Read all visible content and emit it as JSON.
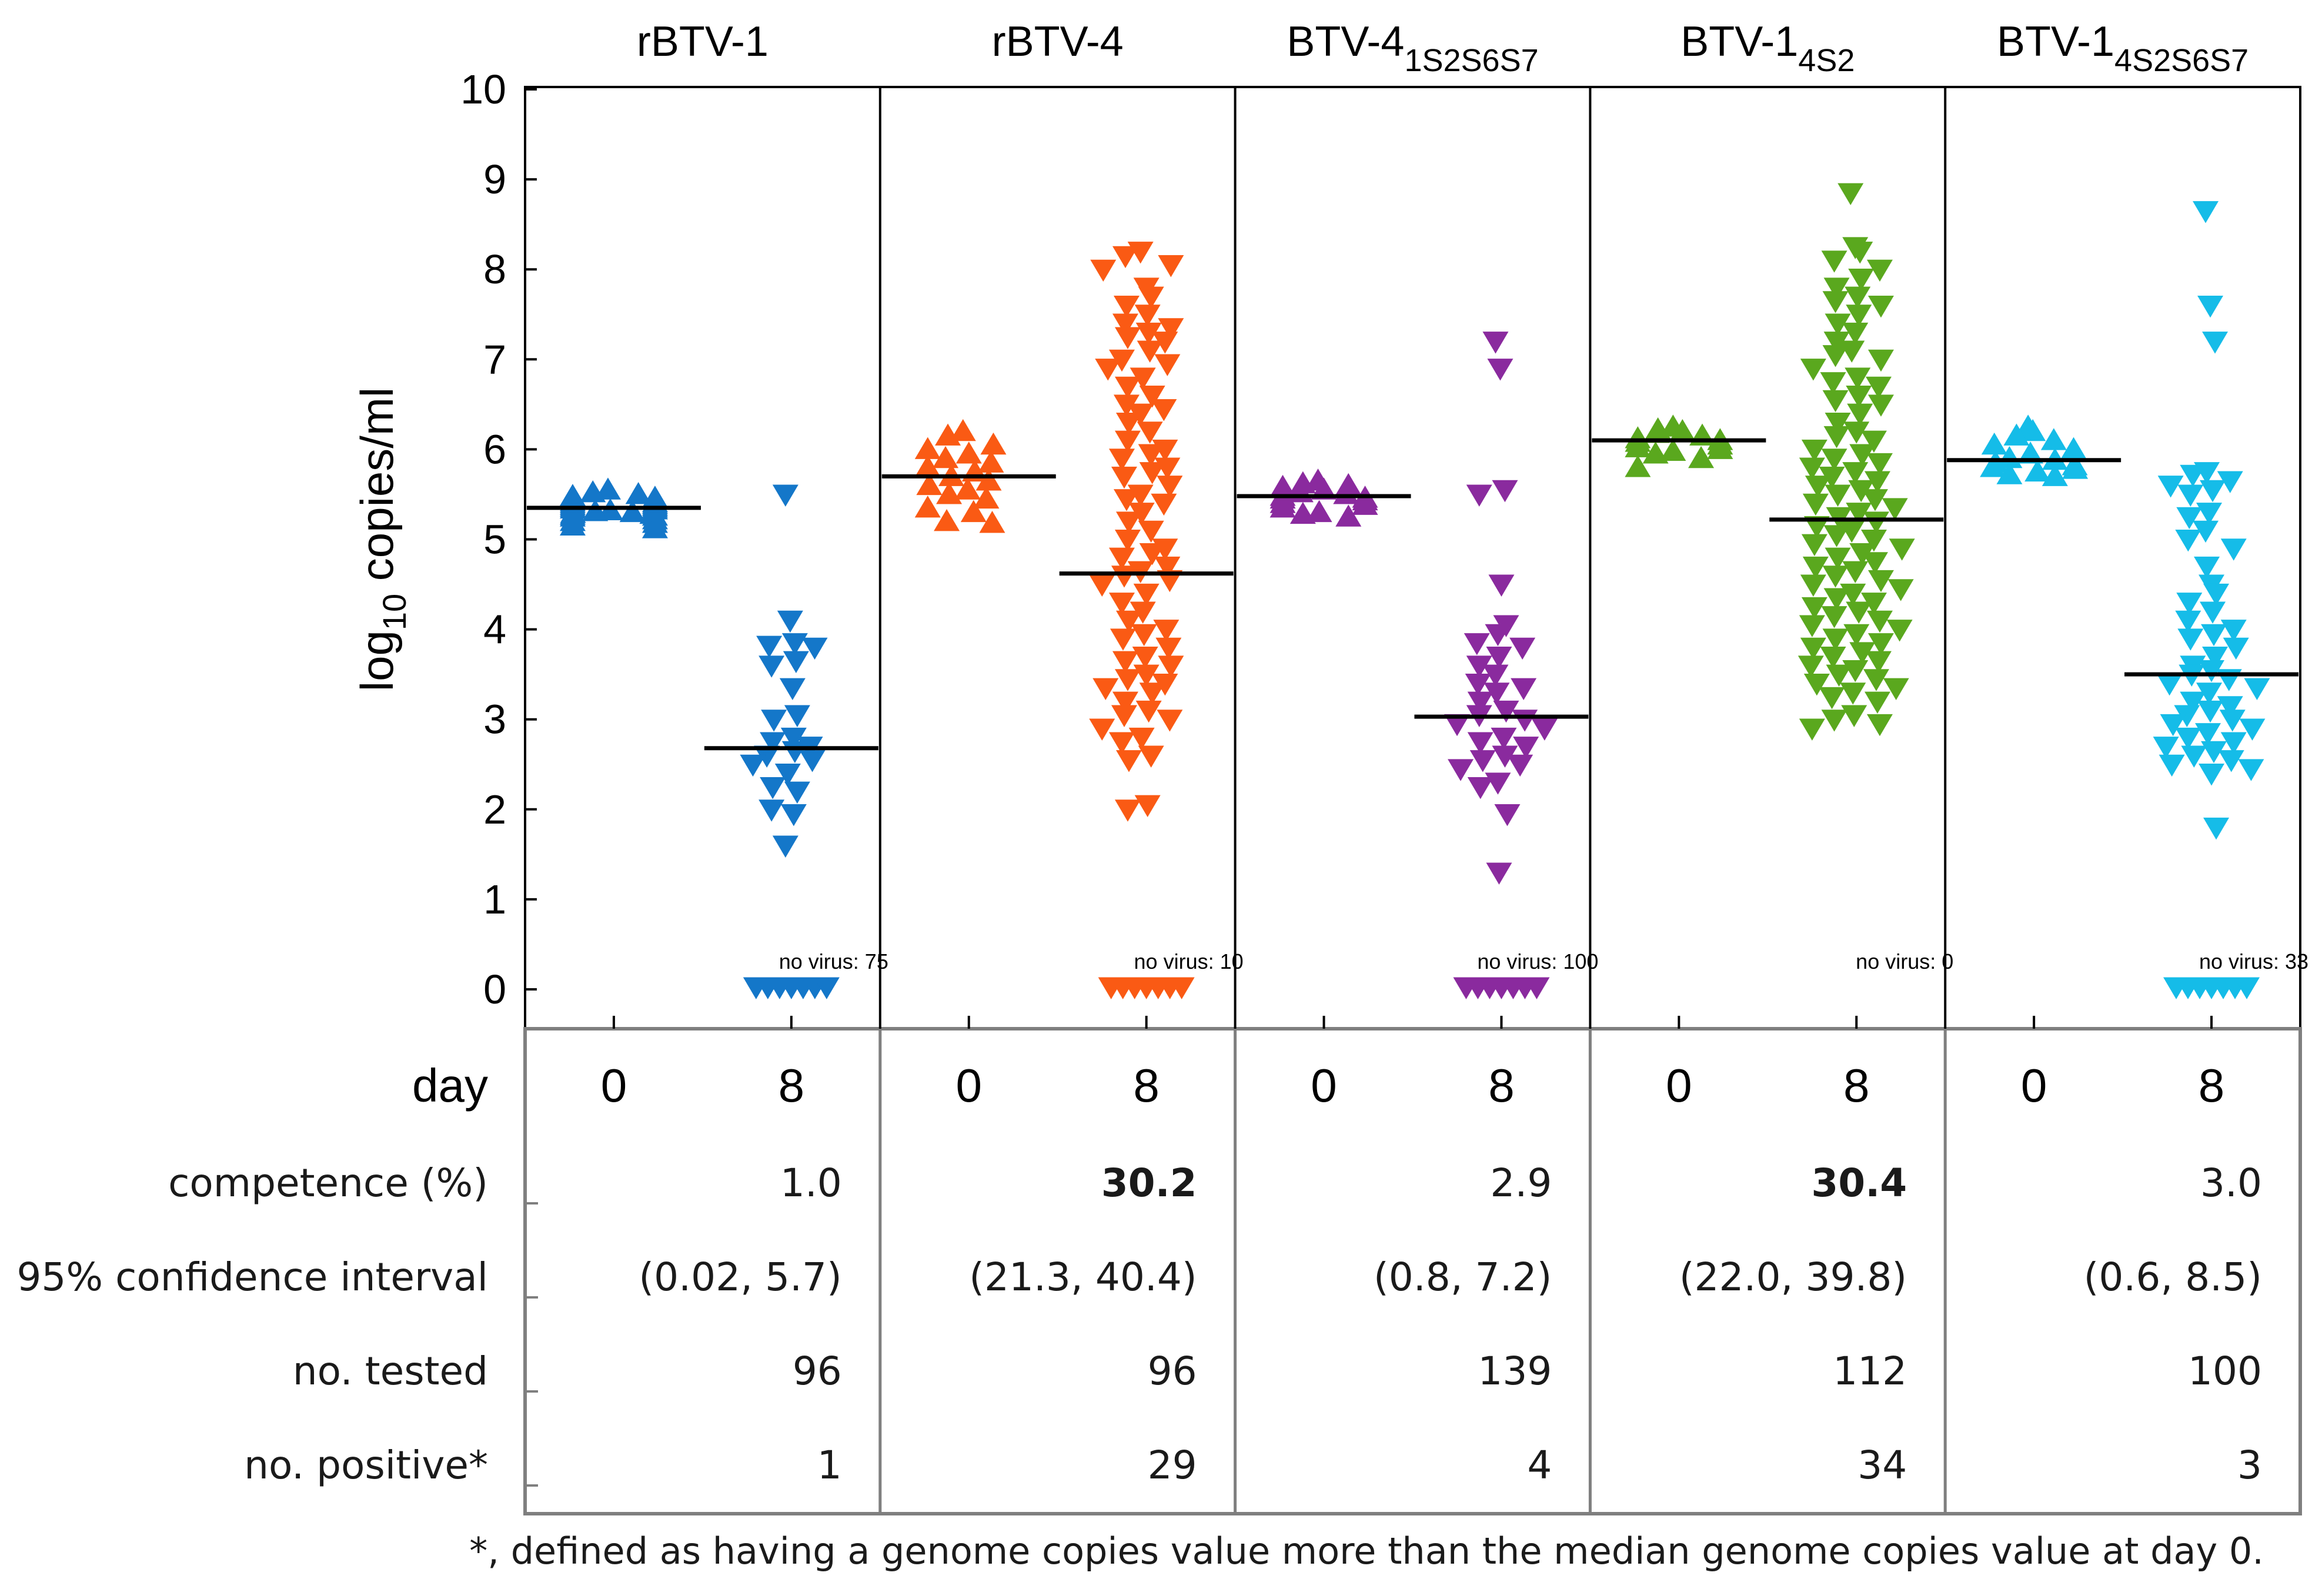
{
  "chart_data": {
    "type": "scatter",
    "ylabel_base": "log",
    "ylabel_sub": "10",
    "ylabel_rest": " copies/ml",
    "ylim": [
      0,
      10
    ],
    "yticks": [
      0,
      1,
      2,
      3,
      4,
      5,
      6,
      7,
      8,
      9,
      10
    ],
    "day_label": "day",
    "days": [
      "0",
      "8"
    ],
    "no_virus_prefix": "no virus: ",
    "panels": [
      {
        "title_main": "rBTV-1",
        "title_sub": "",
        "color": "#1477c9",
        "day0": {
          "median": 5.35,
          "values": [
            5.55,
            5.52,
            5.5,
            5.48,
            5.46,
            5.45,
            5.44,
            5.42,
            5.41,
            5.4,
            5.39,
            5.38,
            5.37,
            5.36,
            5.35,
            5.34,
            5.33,
            5.32,
            5.31,
            5.3,
            5.29,
            5.28,
            5.27,
            5.26,
            5.25,
            5.22,
            5.2,
            5.18,
            5.15,
            5.12
          ]
        },
        "day8": {
          "median": 2.68,
          "no_virus": 75,
          "values": [
            5.5,
            4.1,
            3.85,
            3.82,
            3.8,
            3.65,
            3.6,
            3.35,
            3.05,
            3.0,
            2.8,
            2.75,
            2.7,
            2.65,
            2.6,
            2.55,
            2.5,
            2.4,
            2.25,
            2.2,
            2.0,
            1.95,
            1.6
          ]
        }
      },
      {
        "title_main": "rBTV-4",
        "title_sub": "",
        "color": "#fa5a14",
        "day0": {
          "median": 5.7,
          "values": [
            6.2,
            6.15,
            6.05,
            6.0,
            5.95,
            5.9,
            5.85,
            5.8,
            5.75,
            5.7,
            5.65,
            5.6,
            5.55,
            5.5,
            5.45,
            5.35,
            5.3,
            5.2,
            5.18
          ]
        },
        "day8": {
          "median": 4.62,
          "no_virus": 10,
          "values": [
            8.2,
            8.15,
            8.05,
            8.0,
            7.8,
            7.7,
            7.6,
            7.5,
            7.4,
            7.35,
            7.3,
            7.25,
            7.2,
            7.1,
            7.0,
            6.95,
            6.9,
            6.8,
            6.7,
            6.6,
            6.5,
            6.45,
            6.4,
            6.3,
            6.2,
            6.1,
            6.0,
            5.95,
            5.9,
            5.8,
            5.75,
            5.7,
            5.6,
            5.5,
            5.45,
            5.4,
            5.3,
            5.2,
            5.1,
            5.0,
            4.9,
            4.85,
            4.8,
            4.7,
            4.65,
            4.6,
            4.55,
            4.5,
            4.4,
            4.3,
            4.2,
            4.1,
            4.0,
            3.95,
            3.9,
            3.8,
            3.7,
            3.65,
            3.6,
            3.5,
            3.45,
            3.4,
            3.35,
            3.3,
            3.2,
            3.1,
            3.05,
            3.0,
            2.9,
            2.8,
            2.75,
            2.6,
            2.55,
            2.05,
            2.0
          ]
        }
      },
      {
        "title_main": "BTV-4",
        "title_sub": "1S2S6S7",
        "color": "#8a2a9e",
        "day0": {
          "median": 5.48,
          "values": [
            5.65,
            5.62,
            5.6,
            5.58,
            5.55,
            5.52,
            5.5,
            5.48,
            5.46,
            5.45,
            5.43,
            5.4,
            5.38,
            5.35,
            5.3,
            5.28,
            5.25
          ]
        },
        "day8": {
          "median": 3.03,
          "no_virus": 100,
          "values": [
            7.2,
            6.9,
            5.55,
            5.5,
            4.5,
            4.05,
            3.95,
            3.85,
            3.8,
            3.7,
            3.6,
            3.5,
            3.4,
            3.35,
            3.3,
            3.2,
            3.1,
            3.05,
            3.0,
            2.95,
            2.9,
            2.8,
            2.75,
            2.7,
            2.6,
            2.55,
            2.5,
            2.45,
            2.3,
            2.25,
            1.95,
            1.3
          ]
        }
      },
      {
        "title_main": "BTV-1",
        "title_sub": "4S2",
        "color": "#5aa81e",
        "day0": {
          "median": 6.1,
          "values": [
            6.25,
            6.22,
            6.2,
            6.18,
            6.15,
            6.12,
            6.1,
            6.08,
            6.05,
            6.02,
            6.0,
            5.98,
            5.95,
            5.9,
            5.8
          ]
        },
        "day8": {
          "median": 5.22,
          "no_virus": 0,
          "values": [
            8.85,
            8.25,
            8.2,
            8.1,
            8.0,
            7.9,
            7.8,
            7.7,
            7.65,
            7.6,
            7.5,
            7.4,
            7.3,
            7.2,
            7.1,
            7.05,
            7.0,
            6.9,
            6.8,
            6.75,
            6.7,
            6.6,
            6.55,
            6.5,
            6.4,
            6.3,
            6.2,
            6.15,
            6.1,
            6.0,
            5.95,
            5.9,
            5.85,
            5.8,
            5.75,
            5.7,
            5.65,
            5.6,
            5.55,
            5.5,
            5.45,
            5.4,
            5.35,
            5.3,
            5.25,
            5.2,
            5.15,
            5.1,
            5.05,
            5.0,
            4.95,
            4.9,
            4.85,
            4.8,
            4.75,
            4.7,
            4.65,
            4.6,
            4.55,
            4.5,
            4.45,
            4.4,
            4.35,
            4.3,
            4.25,
            4.2,
            4.15,
            4.1,
            4.05,
            4.0,
            3.95,
            3.9,
            3.85,
            3.8,
            3.75,
            3.7,
            3.65,
            3.6,
            3.55,
            3.5,
            3.45,
            3.4,
            3.35,
            3.3,
            3.25,
            3.2,
            3.05,
            3.0,
            2.95,
            2.9
          ]
        }
      },
      {
        "title_main": "BTV-1",
        "title_sub": "4S2S6S7",
        "color": "#15bce8",
        "day0": {
          "median": 5.88,
          "values": [
            6.25,
            6.2,
            6.15,
            6.1,
            6.05,
            6.0,
            5.95,
            5.9,
            5.88,
            5.85,
            5.82,
            5.8,
            5.78,
            5.75,
            5.72,
            5.7
          ]
        },
        "day8": {
          "median": 3.5,
          "no_virus": 33,
          "values": [
            8.65,
            7.6,
            7.2,
            5.75,
            5.72,
            5.65,
            5.6,
            5.55,
            5.5,
            5.3,
            5.25,
            5.1,
            5.0,
            4.9,
            4.7,
            4.5,
            4.4,
            4.3,
            4.2,
            4.1,
            4.0,
            3.95,
            3.9,
            3.8,
            3.7,
            3.6,
            3.55,
            3.5,
            3.45,
            3.4,
            3.35,
            3.3,
            3.2,
            3.15,
            3.1,
            3.05,
            3.0,
            2.95,
            2.9,
            2.85,
            2.8,
            2.75,
            2.7,
            2.65,
            2.6,
            2.55,
            2.5,
            2.45,
            2.4,
            1.8
          ]
        }
      }
    ],
    "table": {
      "rows": [
        {
          "label": "competence (%)",
          "values": [
            "1.0",
            "30.2",
            "2.9",
            "30.4",
            "3.0"
          ],
          "bold": [
            false,
            true,
            false,
            true,
            false
          ]
        },
        {
          "label": "95% confidence interval",
          "values": [
            "(0.02, 5.7)",
            "(21.3, 40.4)",
            "(0.8, 7.2)",
            "(22.0, 39.8)",
            "(0.6, 8.5)"
          ],
          "bold": [
            false,
            false,
            false,
            false,
            false
          ]
        },
        {
          "label": "no. tested",
          "values": [
            "96",
            "96",
            "139",
            "112",
            "100"
          ],
          "bold": [
            false,
            false,
            false,
            false,
            false
          ]
        },
        {
          "label": "no. positive*",
          "values": [
            "1",
            "29",
            "4",
            "34",
            "3"
          ],
          "bold": [
            false,
            false,
            false,
            false,
            false
          ]
        }
      ]
    },
    "footnote": "*, defined as having a genome copies value more than the median genome copies value at day 0."
  }
}
